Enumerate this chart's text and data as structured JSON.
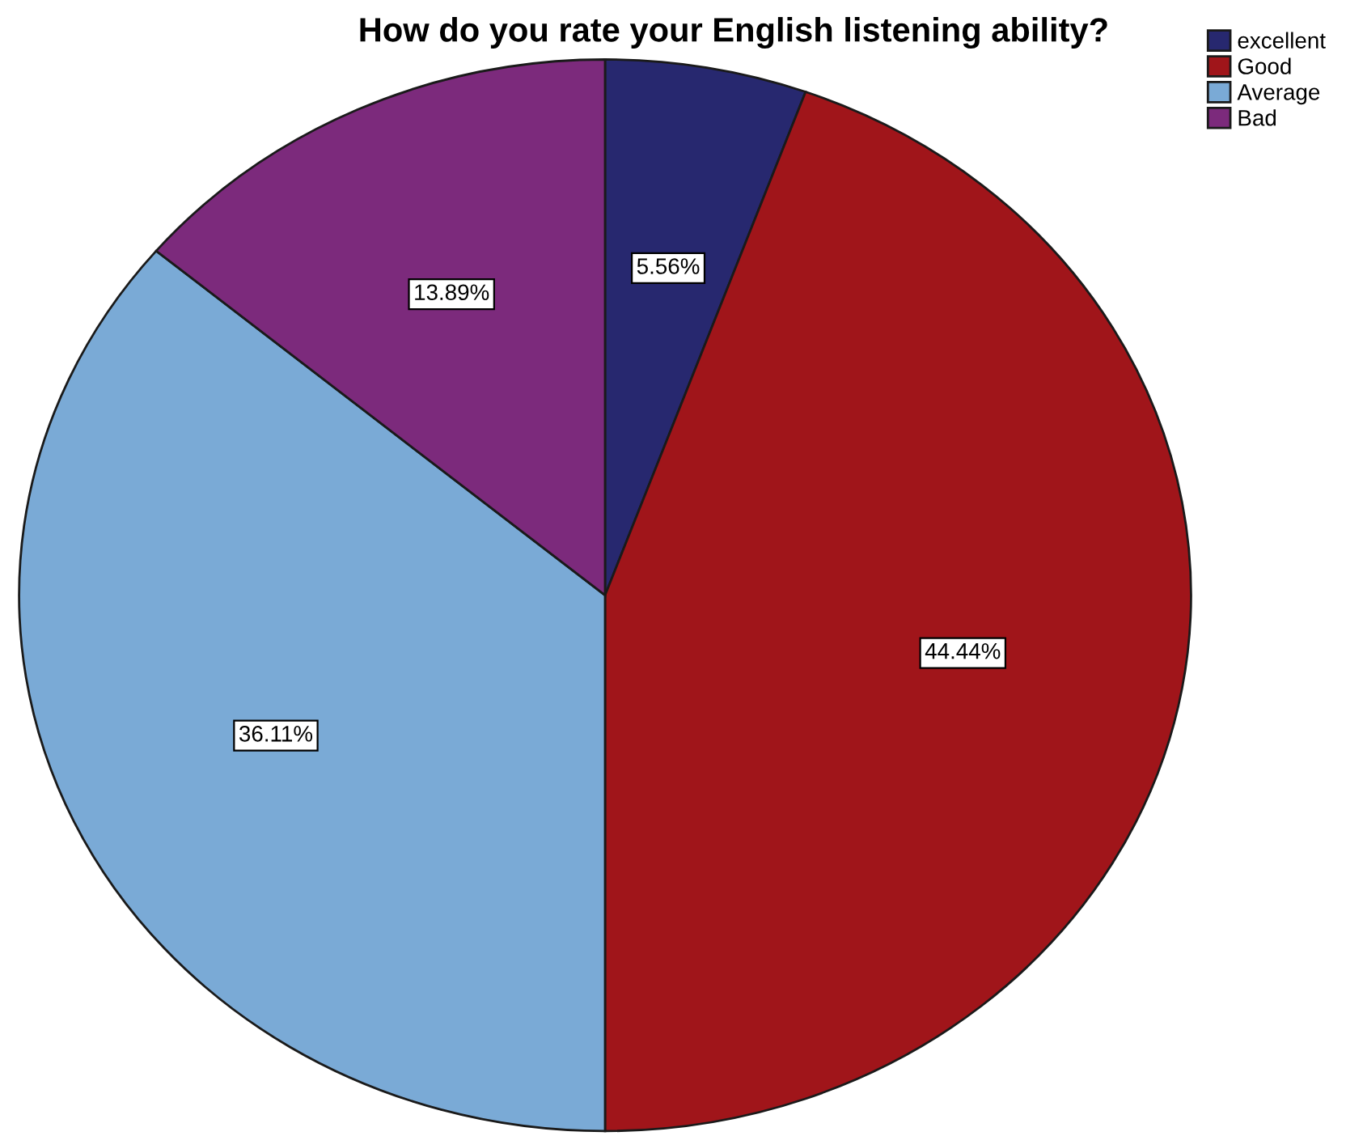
{
  "chart_data": {
    "type": "pie",
    "title": "How do you rate your English listening ability?",
    "categories": [
      "excellent",
      "Good",
      "Average",
      "Bad"
    ],
    "values": [
      5.56,
      44.44,
      36.11,
      13.89
    ],
    "value_labels": [
      "5.56%",
      "44.44%",
      "36.11%",
      "13.89%"
    ],
    "colors": [
      "#27286f",
      "#a0151a",
      "#7aaad6",
      "#7c2a7c"
    ],
    "legend": "top right"
  }
}
